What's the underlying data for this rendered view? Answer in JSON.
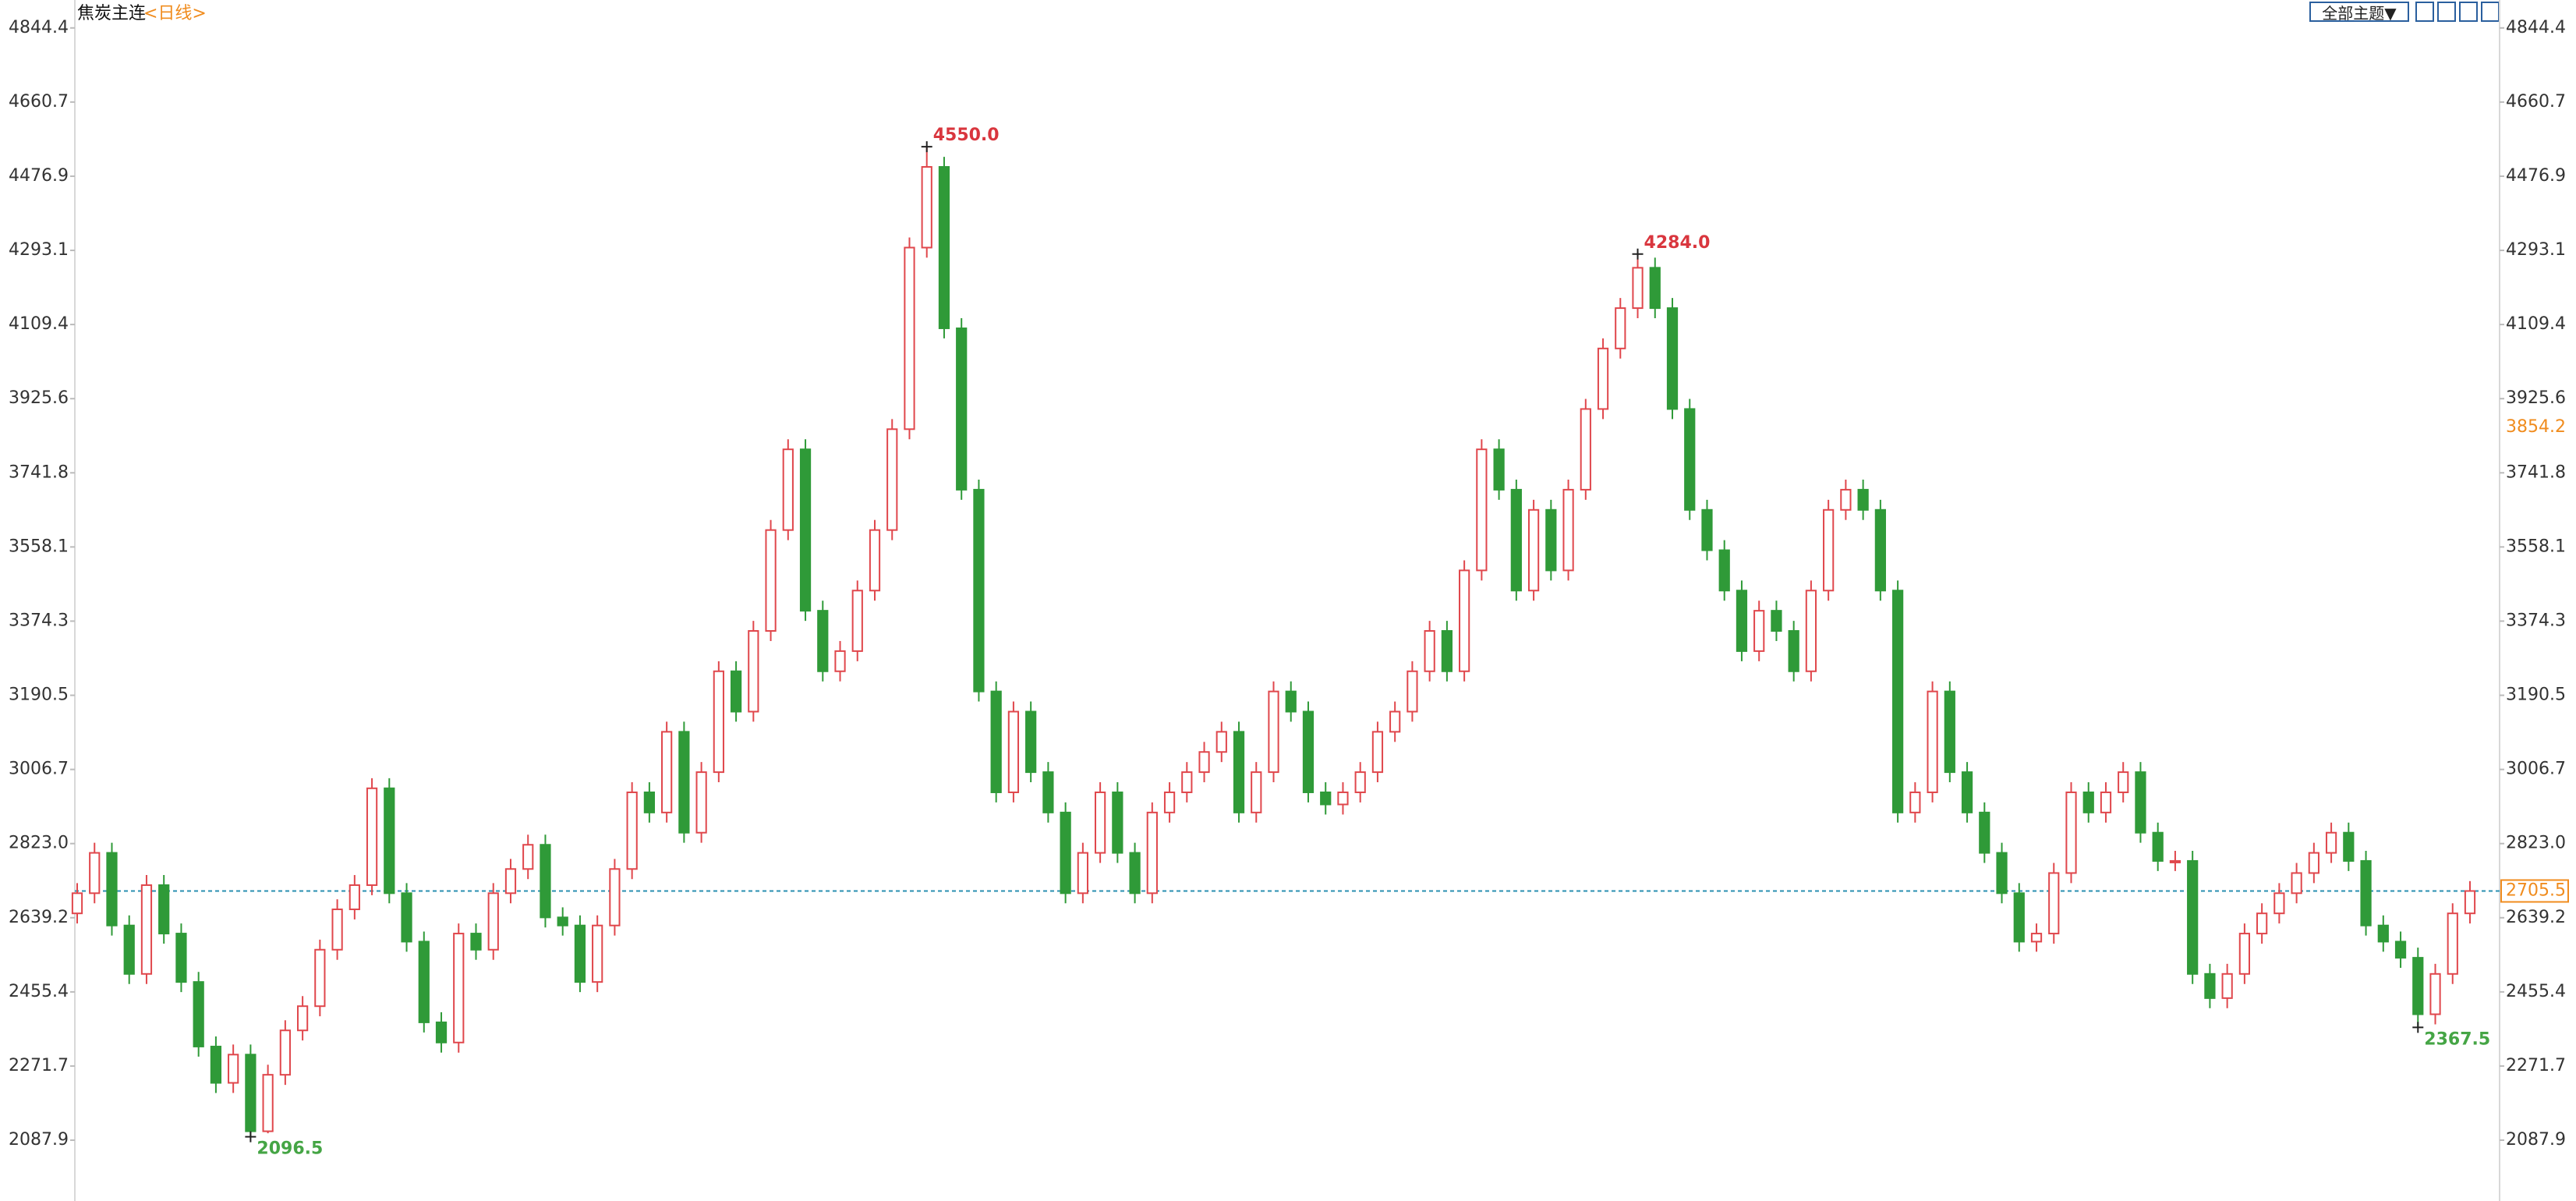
{
  "chart_data": {
    "type": "candlestick",
    "title": "焦炭主连",
    "period": "<日线>",
    "open": [
      2650,
      2700,
      2800,
      2620,
      2500,
      2720,
      2600,
      2480,
      2320,
      2230,
      2300,
      2110,
      2250,
      2360,
      2420,
      2560,
      2660,
      2720,
      2960,
      2700,
      2580,
      2380,
      2330,
      2600,
      2560,
      2700,
      2760,
      2820,
      2640,
      2620,
      2480,
      2620,
      2760,
      2950,
      2900,
      3100,
      2850,
      3000,
      3250,
      3150,
      3350,
      3600,
      3800,
      3400,
      3250,
      3300,
      3450,
      3600,
      3850,
      4300,
      4500,
      4100,
      3700,
      3200,
      2950,
      3150,
      3000,
      2900,
      2700,
      2800,
      2950,
      2800,
      2700,
      2900,
      2950,
      3000,
      3050,
      3100,
      2900,
      3000,
      3200,
      3150,
      2950,
      2920,
      2950,
      3000,
      3100,
      3150,
      3250,
      3350,
      3250,
      3500,
      3800,
      3700,
      3450,
      3650,
      3500,
      3700,
      3900,
      4050,
      4150,
      4250,
      4150,
      3900,
      3650,
      3550,
      3450,
      3300,
      3400,
      3350,
      3250,
      3450,
      3650,
      3700,
      3650,
      3450,
      2900,
      2950,
      3200,
      3000,
      2900,
      2800,
      2700,
      2580,
      2600,
      2750,
      2950,
      2900,
      2950,
      3000,
      2850,
      2780,
      2780,
      2500,
      2440,
      2500,
      2600,
      2650,
      2700,
      2750,
      2800,
      2850,
      2780,
      2620,
      2580,
      2540,
      2400,
      2500,
      2650
    ],
    "high": [
      2725,
      2825,
      2825,
      2645,
      2745,
      2745,
      2625,
      2505,
      2345,
      2325,
      2325,
      2275,
      2385,
      2445,
      2585,
      2685,
      2745,
      2985,
      2985,
      2725,
      2605,
      2405,
      2625,
      2625,
      2725,
      2785,
      2845,
      2845,
      2665,
      2645,
      2645,
      2785,
      2975,
      2975,
      3125,
      3125,
      3025,
      3275,
      3275,
      3375,
      3625,
      3825,
      3825,
      3425,
      3325,
      3475,
      3625,
      3875,
      4325,
      4550,
      4525,
      4125,
      3725,
      3225,
      3175,
      3175,
      3025,
      2925,
      2825,
      2975,
      2975,
      2825,
      2925,
      2975,
      3025,
      3075,
      3125,
      3125,
      3025,
      3225,
      3225,
      3175,
      2975,
      2975,
      3025,
      3125,
      3175,
      3275,
      3375,
      3375,
      3525,
      3825,
      3825,
      3725,
      3675,
      3675,
      3725,
      3925,
      4075,
      4175,
      4284,
      4275,
      4175,
      3925,
      3675,
      3575,
      3475,
      3425,
      3425,
      3375,
      3475,
      3675,
      3725,
      3725,
      3675,
      3475,
      2975,
      3225,
      3225,
      3025,
      2925,
      2825,
      2725,
      2625,
      2775,
      2975,
      2975,
      2975,
      3025,
      3025,
      2875,
      2805,
      2805,
      2525,
      2525,
      2625,
      2675,
      2725,
      2775,
      2825,
      2875,
      2875,
      2805,
      2645,
      2605,
      2565,
      2525,
      2675,
      2730
    ],
    "low": [
      2625,
      2675,
      2595,
      2475,
      2475,
      2575,
      2455,
      2295,
      2205,
      2205,
      2096.5,
      2105,
      2225,
      2335,
      2395,
      2535,
      2635,
      2695,
      2675,
      2555,
      2355,
      2305,
      2305,
      2535,
      2535,
      2675,
      2735,
      2615,
      2595,
      2455,
      2455,
      2595,
      2735,
      2875,
      2875,
      2825,
      2825,
      2975,
      3125,
      3125,
      3325,
      3575,
      3375,
      3225,
      3225,
      3275,
      3425,
      3575,
      3825,
      4275,
      4075,
      3675,
      3175,
      2925,
      2925,
      2975,
      2875,
      2675,
      2675,
      2775,
      2775,
      2675,
      2675,
      2875,
      2925,
      2975,
      3025,
      2875,
      2875,
      2975,
      3125,
      2925,
      2895,
      2895,
      2925,
      2975,
      3075,
      3125,
      3225,
      3225,
      3225,
      3475,
      3675,
      3425,
      3425,
      3475,
      3475,
      3675,
      3875,
      4025,
      4125,
      4125,
      3875,
      3625,
      3525,
      3425,
      3275,
      3275,
      3325,
      3225,
      3225,
      3425,
      3625,
      3625,
      3425,
      2875,
      2875,
      2925,
      2975,
      2875,
      2775,
      2675,
      2555,
      2555,
      2575,
      2725,
      2875,
      2875,
      2925,
      2825,
      2755,
      2755,
      2475,
      2415,
      2415,
      2475,
      2575,
      2625,
      2675,
      2725,
      2775,
      2755,
      2595,
      2555,
      2515,
      2367.5,
      2375,
      2475,
      2625
    ],
    "close": [
      2700,
      2800,
      2620,
      2500,
      2720,
      2600,
      2480,
      2320,
      2230,
      2300,
      2110,
      2250,
      2360,
      2420,
      2560,
      2660,
      2720,
      2960,
      2700,
      2580,
      2380,
      2330,
      2600,
      2560,
      2700,
      2760,
      2820,
      2640,
      2620,
      2480,
      2620,
      2760,
      2950,
      2900,
      3100,
      2850,
      3000,
      3250,
      3150,
      3350,
      3600,
      3800,
      3400,
      3250,
      3300,
      3450,
      3600,
      3850,
      4300,
      4500,
      4100,
      3700,
      3200,
      2950,
      3150,
      3000,
      2900,
      2700,
      2800,
      2950,
      2800,
      2700,
      2900,
      2950,
      3000,
      3050,
      3100,
      2900,
      3000,
      3200,
      3150,
      2950,
      2920,
      2950,
      3000,
      3100,
      3150,
      3250,
      3350,
      3250,
      3500,
      3800,
      3700,
      3450,
      3650,
      3500,
      3700,
      3900,
      4050,
      4150,
      4250,
      4150,
      3900,
      3650,
      3550,
      3450,
      3300,
      3400,
      3350,
      3250,
      3450,
      3650,
      3700,
      3650,
      3450,
      2900,
      2950,
      3200,
      3000,
      2900,
      2800,
      2700,
      2580,
      2600,
      2750,
      2950,
      2900,
      2950,
      3000,
      2850,
      2780,
      2780,
      2500,
      2440,
      2500,
      2600,
      2650,
      2700,
      2750,
      2800,
      2850,
      2780,
      2620,
      2580,
      2540,
      2400,
      2500,
      2650,
      2705.5
    ],
    "colors": {
      "up": "#e0474c",
      "down": "#2f9a38",
      "title": "#111111",
      "period": "#f08c1e",
      "high_label": "#d9363e",
      "low_label": "#45a545",
      "last_price": "#2a8fb0",
      "marker": "#f08c1e",
      "axis": "#333333"
    },
    "ylim": [
      1937.2,
      4913.6
    ],
    "yticks": [
      4844.4,
      4660.7,
      4476.9,
      4293.1,
      4109.4,
      3925.6,
      3741.8,
      3558.1,
      3374.3,
      3190.5,
      3006.7,
      {
        "value": 2823,
        "label": "2823.0"
      },
      2639.2,
      2455.4,
      2271.7,
      2087.9
    ],
    "last_price": {
      "value": 2705.5,
      "label": "2705.5"
    },
    "right_marker": {
      "value": 3854.2,
      "label": "3854.2"
    },
    "annotations": [
      {
        "value": 4550,
        "label": "4550.0",
        "kind": "high"
      },
      {
        "value": 4284,
        "label": "4284.0",
        "kind": "high"
      },
      {
        "value": 2096.5,
        "label": "2096.5",
        "kind": "low"
      },
      {
        "value": 2367.5,
        "label": "2367.5",
        "kind": "low"
      }
    ]
  },
  "toolbar": {
    "theme_button": "全部主题▼"
  }
}
